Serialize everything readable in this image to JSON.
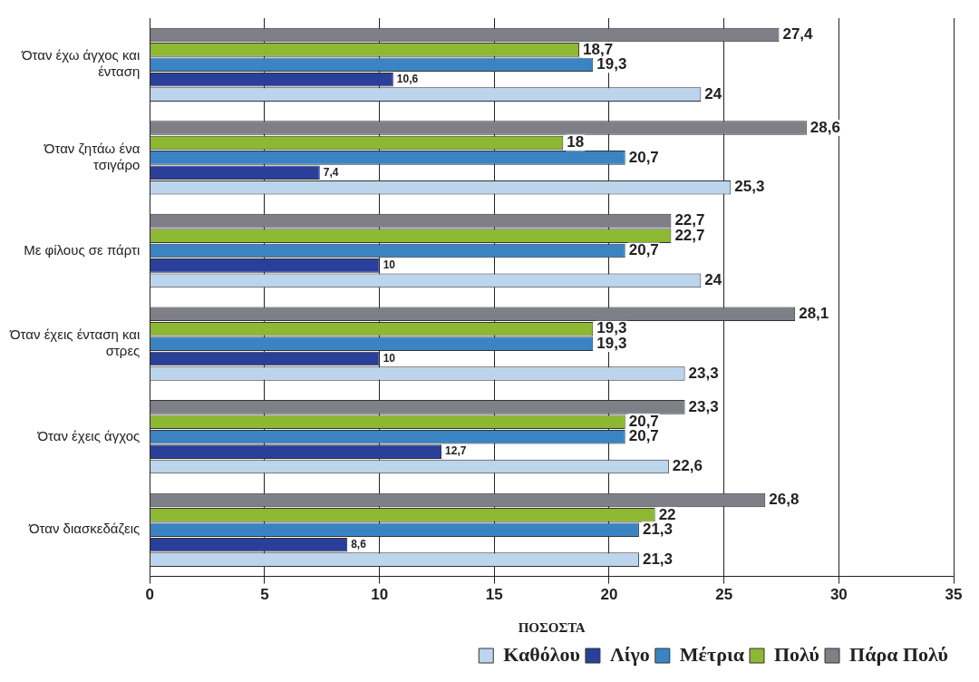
{
  "chart_data": {
    "type": "bar",
    "orientation": "horizontal",
    "xlabel": "ΠΟΣΟΣΤΑ",
    "categories": [
      "Όταν έχω άγχος και ένταση",
      "Όταν ζητάω ένα τσιγάρο",
      "Με φίλους σε πάρτι",
      "Όταν έχεις ένταση και στρες",
      "Όταν έχεις άγχος",
      "Όταν διασκεδάζεις"
    ],
    "series": [
      {
        "name": "Καθόλου",
        "color": "#bcd4ec",
        "values": [
          24,
          25.3,
          24,
          23.3,
          22.6,
          21.3
        ],
        "value_labels": [
          "24",
          "25,3",
          "24",
          "23,3",
          "22,6",
          "21,3"
        ]
      },
      {
        "name": "Λίγο",
        "color": "#2a3f9a",
        "values": [
          10.6,
          7.4,
          10,
          10,
          12.7,
          8.6
        ],
        "value_labels": [
          "10,6",
          "7,4",
          "10",
          "10",
          "12,7",
          "8,6"
        ]
      },
      {
        "name": "Μέτρια",
        "color": "#3a84c4",
        "values": [
          19.3,
          20.7,
          20.7,
          19.3,
          20.7,
          21.3
        ],
        "value_labels": [
          "19,3",
          "20,7",
          "20,7",
          "19,3",
          "20,7",
          "21,3"
        ]
      },
      {
        "name": "Πολύ",
        "color": "#8db832",
        "values": [
          18.7,
          18,
          22.7,
          19.3,
          20.7,
          22
        ],
        "value_labels": [
          "18,7",
          "18",
          "22,7",
          "19,3",
          "20,7",
          "22"
        ]
      },
      {
        "name": "Πάρα Πολύ",
        "color": "#7f7f88",
        "values": [
          27.4,
          28.6,
          22.7,
          28.1,
          23.3,
          26.8
        ],
        "value_labels": [
          "27,4",
          "28,6",
          "22,7",
          "28,1",
          "23,3",
          "26,8"
        ]
      }
    ],
    "xlim": [
      0,
      35
    ],
    "xticks": [
      0,
      5,
      10,
      15,
      20,
      25,
      30,
      35
    ],
    "grid": "x",
    "legend": "bottom"
  }
}
